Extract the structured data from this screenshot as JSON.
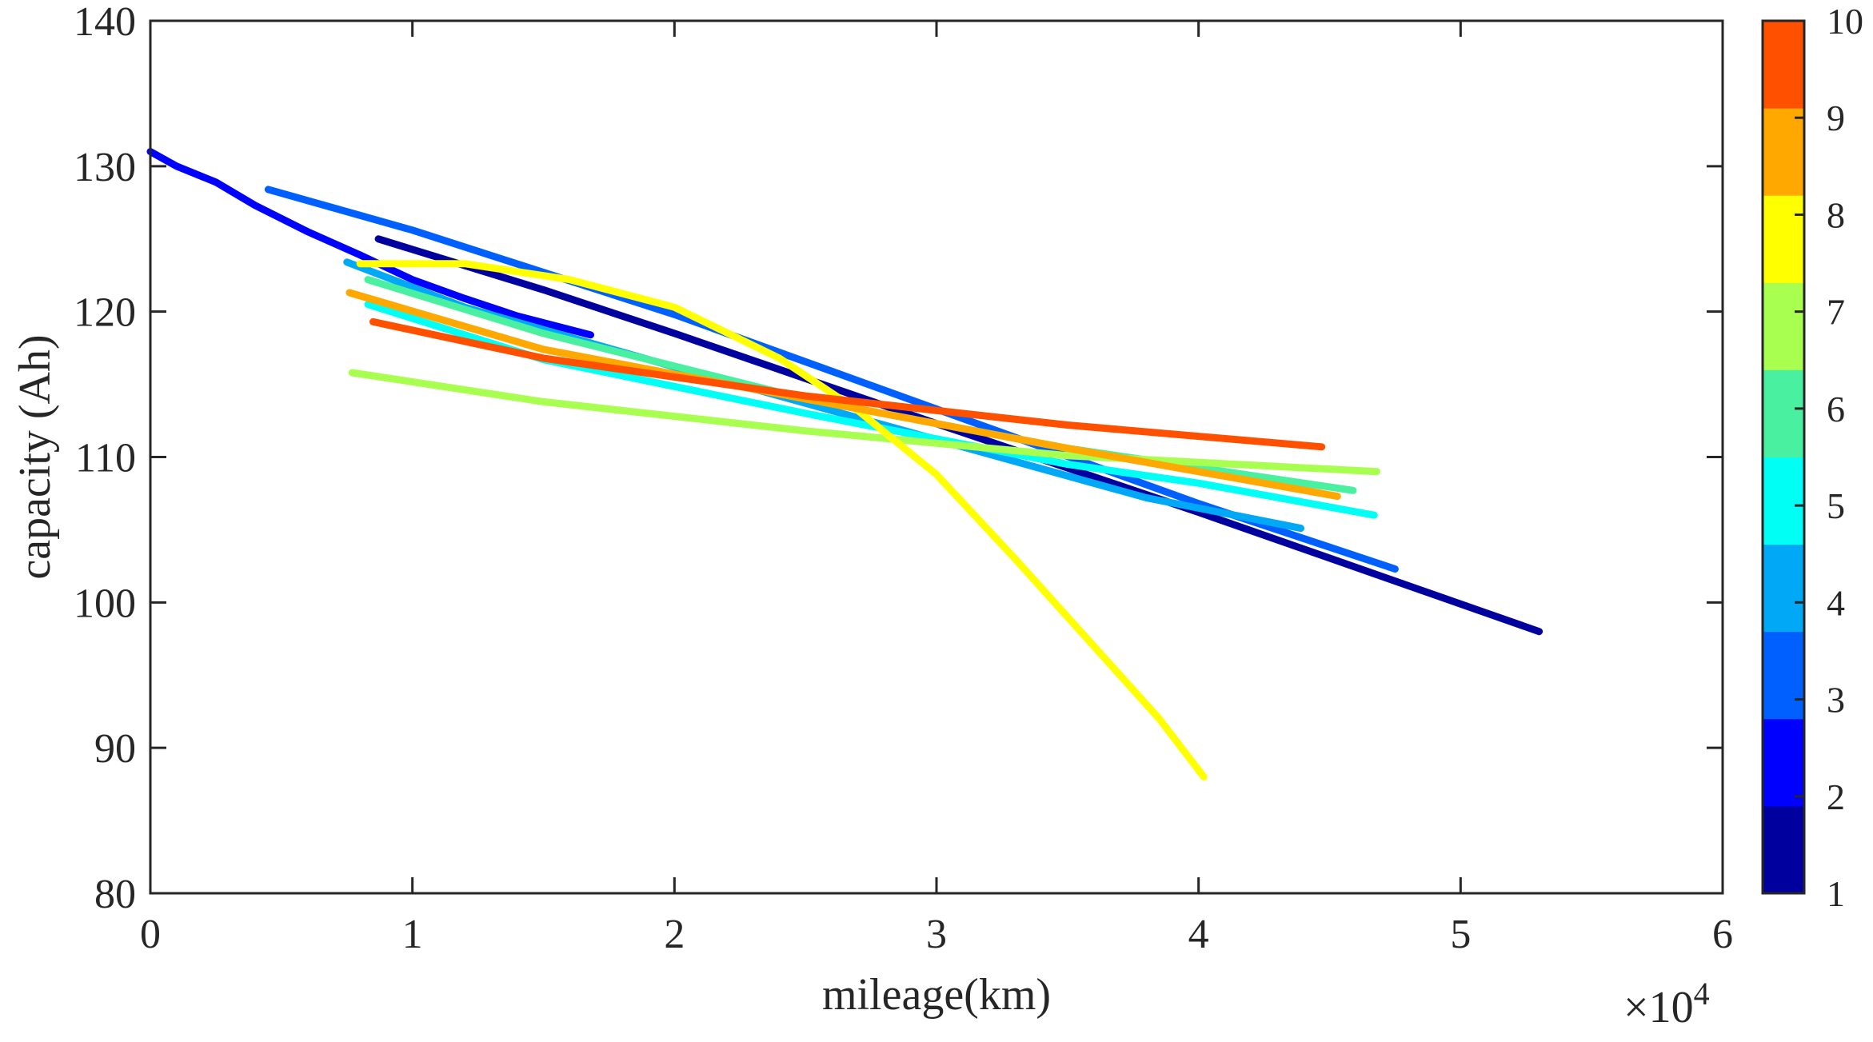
{
  "chart_data": {
    "type": "line",
    "title": "",
    "xlabel": "mileage(km)",
    "ylabel": "capacity (Ah)",
    "x_multiplier_label": "×10",
    "x_multiplier_exponent": "4",
    "xlim": [
      0,
      60000
    ],
    "ylim": [
      80,
      140
    ],
    "x_ticks": [
      0,
      10000,
      20000,
      30000,
      40000,
      50000,
      60000
    ],
    "x_tick_labels": [
      "0",
      "1",
      "2",
      "3",
      "4",
      "5",
      "6"
    ],
    "y_ticks": [
      80,
      90,
      100,
      110,
      120,
      130,
      140
    ],
    "y_tick_labels": [
      "80",
      "90",
      "100",
      "110",
      "120",
      "130",
      "140"
    ],
    "colorbar": {
      "ticks": [
        "1",
        "2",
        "3",
        "4",
        "5",
        "6",
        "7",
        "8",
        "9",
        "10"
      ],
      "colors": [
        "#00009F",
        "#0000FF",
        "#0060FF",
        "#00A8F5",
        "#00FFF5",
        "#48F0A0",
        "#A8FF50",
        "#FFFF00",
        "#FFA800",
        "#FF5000"
      ]
    },
    "series": [
      {
        "name": "1",
        "color": "#00009F",
        "points": [
          [
            8700,
            125.0
          ],
          [
            15000,
            121.5
          ],
          [
            20000,
            118.5
          ],
          [
            30000,
            112.3
          ],
          [
            40000,
            106.2
          ],
          [
            53000,
            98.0
          ]
        ]
      },
      {
        "name": "2",
        "color": "#0000FF",
        "points": [
          [
            0,
            131.0
          ],
          [
            1000,
            130.0
          ],
          [
            2500,
            128.9
          ],
          [
            4000,
            127.3
          ],
          [
            6000,
            125.5
          ],
          [
            8000,
            123.9
          ],
          [
            10000,
            122.2
          ],
          [
            12000,
            120.9
          ],
          [
            14000,
            119.7
          ],
          [
            16800,
            118.4
          ]
        ]
      },
      {
        "name": "3",
        "color": "#0060FF",
        "points": [
          [
            4500,
            128.4
          ],
          [
            10000,
            125.6
          ],
          [
            20000,
            119.8
          ],
          [
            30000,
            113.3
          ],
          [
            40000,
            106.8
          ],
          [
            47500,
            102.3
          ]
        ]
      },
      {
        "name": "4",
        "color": "#00A8F5",
        "points": [
          [
            7500,
            123.4
          ],
          [
            12000,
            120.3
          ],
          [
            20000,
            116.2
          ],
          [
            30000,
            111.2
          ],
          [
            38000,
            107.2
          ],
          [
            43900,
            105.1
          ]
        ]
      },
      {
        "name": "5",
        "color": "#00FFF5",
        "points": [
          [
            8300,
            120.5
          ],
          [
            15000,
            116.7
          ],
          [
            25000,
            113.0
          ],
          [
            35000,
            109.5
          ],
          [
            40000,
            108.2
          ],
          [
            46700,
            106.0
          ]
        ]
      },
      {
        "name": "6",
        "color": "#48F0A0",
        "points": [
          [
            8300,
            122.2
          ],
          [
            15000,
            118.5
          ],
          [
            25000,
            114.0
          ],
          [
            35000,
            110.6
          ],
          [
            45900,
            107.7
          ]
        ]
      },
      {
        "name": "7",
        "color": "#A8FF50",
        "points": [
          [
            7700,
            115.8
          ],
          [
            15000,
            113.8
          ],
          [
            25000,
            111.8
          ],
          [
            35000,
            110.1
          ],
          [
            46800,
            109.0
          ]
        ]
      },
      {
        "name": "8",
        "color": "#FFFF00",
        "points": [
          [
            8000,
            123.3
          ],
          [
            12000,
            123.3
          ],
          [
            16000,
            122.2
          ],
          [
            20000,
            120.3
          ],
          [
            24000,
            116.8
          ],
          [
            27000,
            113.2
          ],
          [
            30000,
            108.8
          ],
          [
            33000,
            103.0
          ],
          [
            36000,
            97.0
          ],
          [
            38500,
            92.0
          ],
          [
            40200,
            88.0
          ]
        ]
      },
      {
        "name": "9",
        "color": "#FFA800",
        "points": [
          [
            7600,
            121.3
          ],
          [
            15000,
            117.4
          ],
          [
            25000,
            114.0
          ],
          [
            35000,
            110.6
          ],
          [
            45300,
            107.3
          ]
        ]
      },
      {
        "name": "10",
        "color": "#FF5000",
        "points": [
          [
            8500,
            119.3
          ],
          [
            15000,
            116.8
          ],
          [
            25000,
            114.2
          ],
          [
            35000,
            112.2
          ],
          [
            44700,
            110.7
          ]
        ]
      }
    ]
  }
}
